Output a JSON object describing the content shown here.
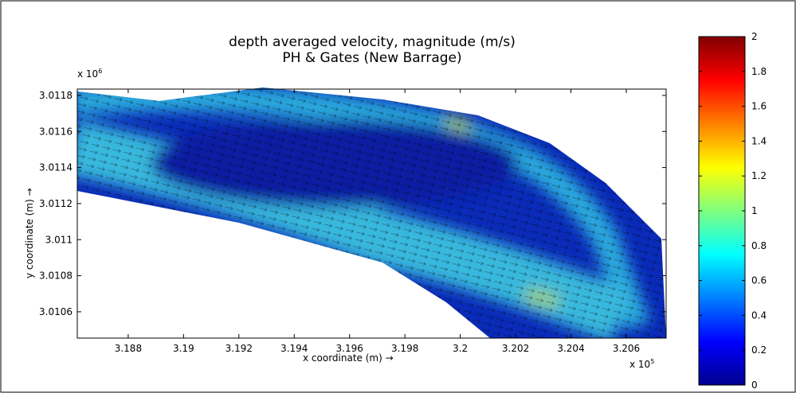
{
  "chart_data": {
    "type": "quiver",
    "title": "depth averaged velocity, magnitude (m/s)",
    "subtitle": "PH & Gates (New Barrage)",
    "x_label": "x coordinate (m) →",
    "y_label": "y coordinate (m) →",
    "x_multiplier": {
      "base": "x 10",
      "exponent": "5"
    },
    "y_multiplier": {
      "base": "x 10",
      "exponent": "6"
    },
    "xlim": [
      3.18616,
      3.20744
    ],
    "xticks": [
      3.188,
      3.19,
      3.192,
      3.194,
      3.196,
      3.198,
      3.2,
      3.202,
      3.204,
      3.206
    ],
    "ylim": [
      3.010454,
      3.011835
    ],
    "yticks": [
      3.0106,
      3.0108,
      3.011,
      3.0112,
      3.0114,
      3.0116,
      3.0118
    ],
    "colorbar": {
      "lim": [
        0,
        2
      ],
      "ticks": [
        0,
        0.2,
        0.4,
        0.6,
        0.8,
        1,
        1.2,
        1.4,
        1.6,
        1.8,
        2
      ],
      "colormap": "jet"
    }
  }
}
